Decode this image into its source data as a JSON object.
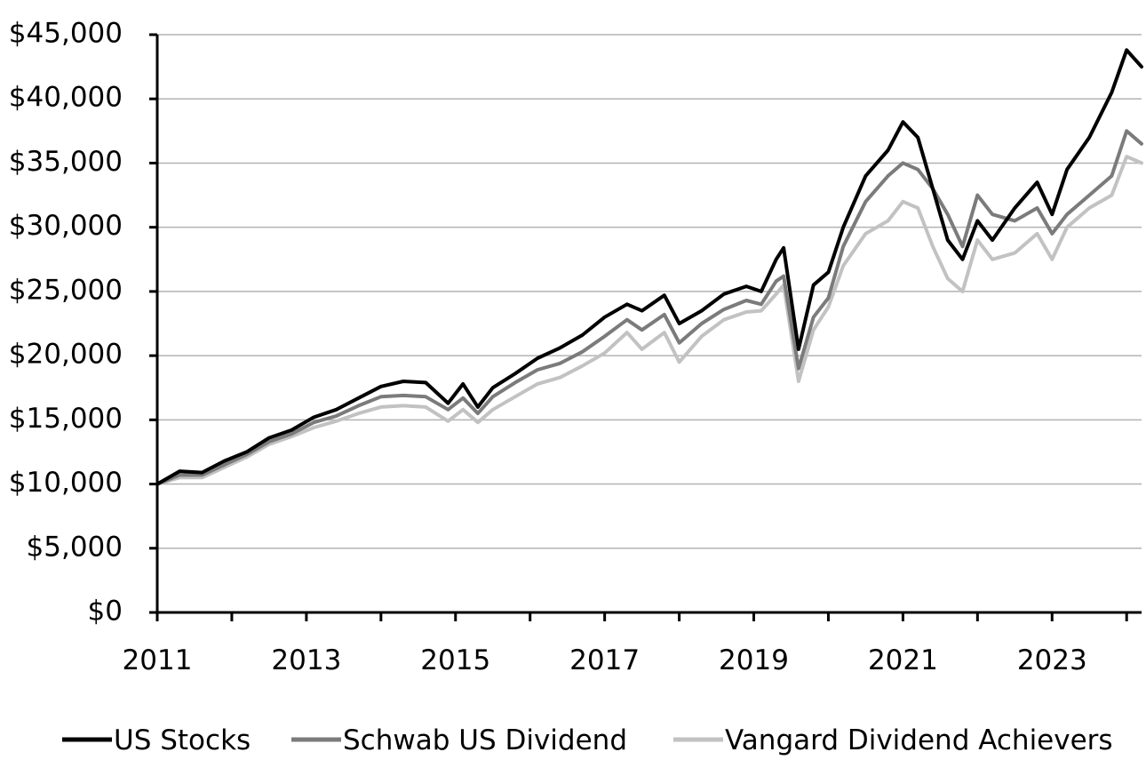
{
  "chart_data": {
    "type": "line",
    "title": "",
    "xlabel": "",
    "ylabel": "",
    "ylim": [
      0,
      45000
    ],
    "y_ticks": [
      0,
      5000,
      10000,
      15000,
      20000,
      25000,
      30000,
      35000,
      40000,
      45000
    ],
    "y_tick_labels": [
      "$0",
      "$5,000",
      "$10,000",
      "$15,000",
      "$20,000",
      "$25,000",
      "$30,000",
      "$35,000",
      "$40,000",
      "$45,000"
    ],
    "xlim": [
      2011.0,
      2024.2
    ],
    "x_ticks": [
      2011,
      2013,
      2015,
      2017,
      2019,
      2021,
      2023
    ],
    "x_tick_labels": [
      "2011",
      "2013",
      "2015",
      "2017",
      "2019",
      "2021",
      "2023"
    ],
    "grid": "horizontal",
    "legend_position": "bottom",
    "series": [
      {
        "name": "US Stocks",
        "color": "#000000",
        "x": [
          2011.0,
          2011.3,
          2011.6,
          2011.9,
          2012.2,
          2012.5,
          2012.8,
          2013.1,
          2013.4,
          2013.7,
          2014.0,
          2014.3,
          2014.6,
          2014.9,
          2015.1,
          2015.3,
          2015.5,
          2015.8,
          2016.1,
          2016.4,
          2016.7,
          2017.0,
          2017.3,
          2017.5,
          2017.8,
          2018.0,
          2018.3,
          2018.6,
          2018.9,
          2019.1,
          2019.3,
          2019.4,
          2019.6,
          2019.8,
          2020.0,
          2020.2,
          2020.5,
          2020.8,
          2021.0,
          2021.2,
          2021.4,
          2021.6,
          2021.8,
          2022.0,
          2022.2,
          2022.5,
          2022.8,
          2023.0,
          2023.2,
          2023.5,
          2023.8,
          2024.0,
          2024.2
        ],
        "values": [
          10000,
          11000,
          10900,
          11800,
          12500,
          13600,
          14200,
          15200,
          15800,
          16700,
          17600,
          18000,
          17900,
          16300,
          17800,
          16000,
          17500,
          18600,
          19800,
          20600,
          21600,
          23000,
          24000,
          23500,
          24700,
          22500,
          23500,
          24800,
          25400,
          25000,
          27500,
          28400,
          20500,
          25500,
          26500,
          30000,
          34000,
          36000,
          38200,
          37000,
          33000,
          29000,
          27500,
          30500,
          29000,
          31500,
          33500,
          31000,
          34500,
          37000,
          40500,
          43800,
          42500
        ]
      },
      {
        "name": "Schwab US Dividend",
        "color": "#7b7b7b",
        "x": [
          2011.0,
          2011.3,
          2011.6,
          2011.9,
          2012.2,
          2012.5,
          2012.8,
          2013.1,
          2013.4,
          2013.7,
          2014.0,
          2014.3,
          2014.6,
          2014.9,
          2015.1,
          2015.3,
          2015.5,
          2015.8,
          2016.1,
          2016.4,
          2016.7,
          2017.0,
          2017.3,
          2017.5,
          2017.8,
          2018.0,
          2018.3,
          2018.6,
          2018.9,
          2019.1,
          2019.3,
          2019.4,
          2019.6,
          2019.8,
          2020.0,
          2020.2,
          2020.5,
          2020.8,
          2021.0,
          2021.2,
          2021.4,
          2021.6,
          2021.8,
          2022.0,
          2022.2,
          2022.5,
          2022.8,
          2023.0,
          2023.2,
          2023.5,
          2023.8,
          2024.0,
          2024.2
        ],
        "values": [
          10000,
          10700,
          10700,
          11500,
          12300,
          13300,
          13900,
          14800,
          15300,
          16100,
          16800,
          16900,
          16800,
          15800,
          16700,
          15500,
          16800,
          17900,
          18900,
          19400,
          20300,
          21500,
          22800,
          22000,
          23200,
          21000,
          22500,
          23600,
          24300,
          24000,
          25800,
          26200,
          19000,
          23000,
          24500,
          28500,
          32000,
          34000,
          35000,
          34500,
          33000,
          31000,
          28500,
          32500,
          31000,
          30500,
          31500,
          29500,
          31000,
          32500,
          34000,
          37500,
          36500
        ]
      },
      {
        "name": "Vangard Dividend Achievers",
        "color": "#c2c2c2",
        "x": [
          2011.0,
          2011.3,
          2011.6,
          2011.9,
          2012.2,
          2012.5,
          2012.8,
          2013.1,
          2013.4,
          2013.7,
          2014.0,
          2014.3,
          2014.6,
          2014.9,
          2015.1,
          2015.3,
          2015.5,
          2015.8,
          2016.1,
          2016.4,
          2016.7,
          2017.0,
          2017.3,
          2017.5,
          2017.8,
          2018.0,
          2018.3,
          2018.6,
          2018.9,
          2019.1,
          2019.3,
          2019.4,
          2019.6,
          2019.8,
          2020.0,
          2020.2,
          2020.5,
          2020.8,
          2021.0,
          2021.2,
          2021.4,
          2021.6,
          2021.8,
          2022.0,
          2022.2,
          2022.5,
          2022.8,
          2023.0,
          2023.2,
          2023.5,
          2023.8,
          2024.0,
          2024.2
        ],
        "values": [
          10000,
          10500,
          10500,
          11300,
          12100,
          13100,
          13700,
          14400,
          14900,
          15500,
          16000,
          16100,
          16000,
          14900,
          15800,
          14800,
          15800,
          16800,
          17800,
          18300,
          19200,
          20200,
          21800,
          20500,
          21800,
          19500,
          21500,
          22800,
          23400,
          23500,
          24800,
          25500,
          18000,
          22000,
          23800,
          27000,
          29500,
          30500,
          32000,
          31500,
          28500,
          26000,
          25000,
          29000,
          27500,
          28000,
          29500,
          27500,
          30000,
          31500,
          32500,
          35500,
          35000
        ]
      }
    ]
  }
}
